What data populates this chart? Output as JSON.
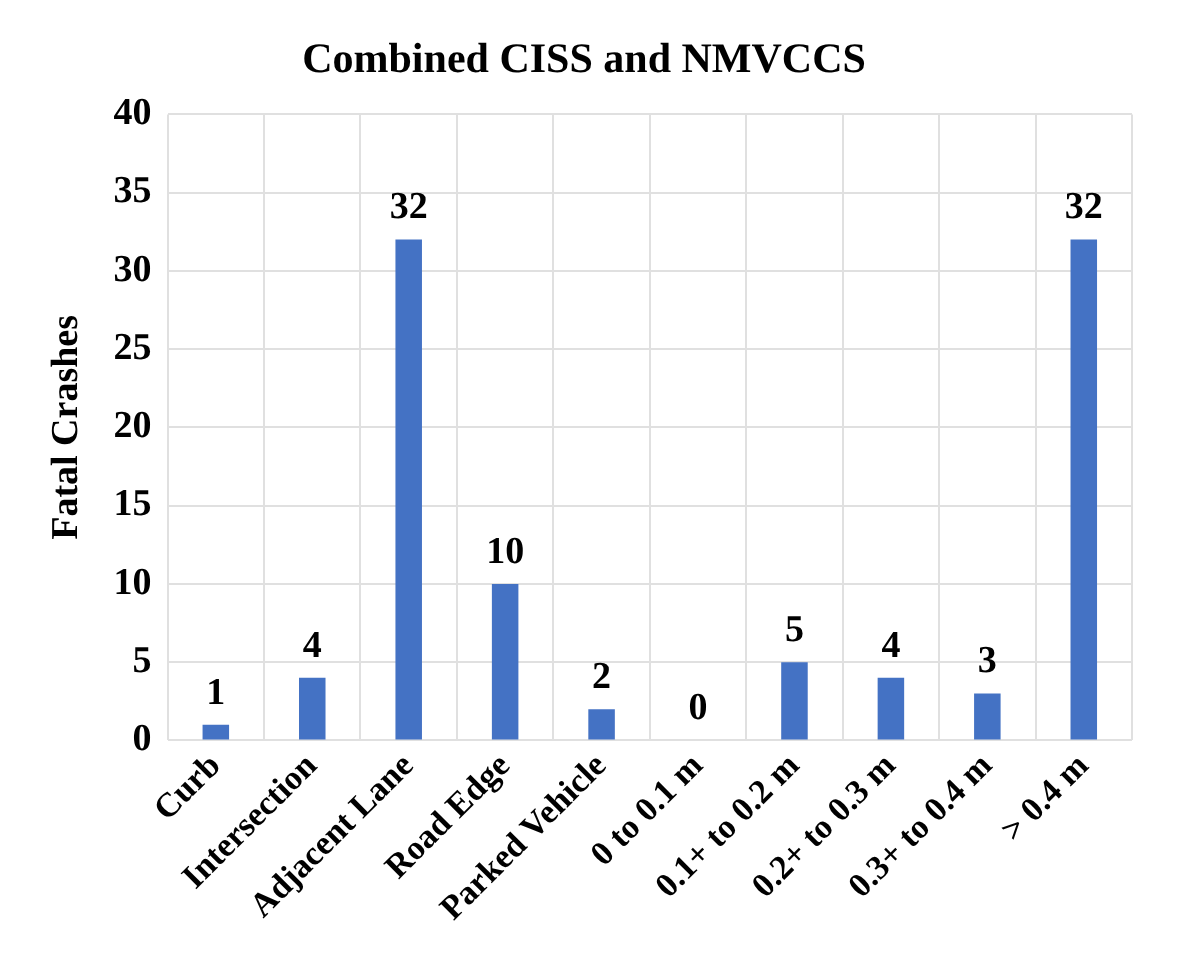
{
  "chart_data": {
    "type": "bar",
    "title": "Combined CISS and NMVCCS",
    "ylabel": "Fatal Crashes",
    "categories": [
      "Curb",
      "Intersection",
      "Adjacent Lane",
      "Road Edge",
      "Parked Vehicle",
      "0 to 0.1 m",
      "0.1+ to 0.2 m",
      "0.2+ to 0.3 m",
      "0.3+ to 0.4 m",
      "> 0.4 m"
    ],
    "values": [
      1,
      4,
      32,
      10,
      2,
      0,
      5,
      4,
      3,
      32
    ],
    "color": "#4472c4",
    "ylim": [
      0,
      40
    ],
    "yticks": [
      0,
      5,
      10,
      15,
      20,
      25,
      30,
      35,
      40
    ],
    "grid": true,
    "data_labels": true
  }
}
